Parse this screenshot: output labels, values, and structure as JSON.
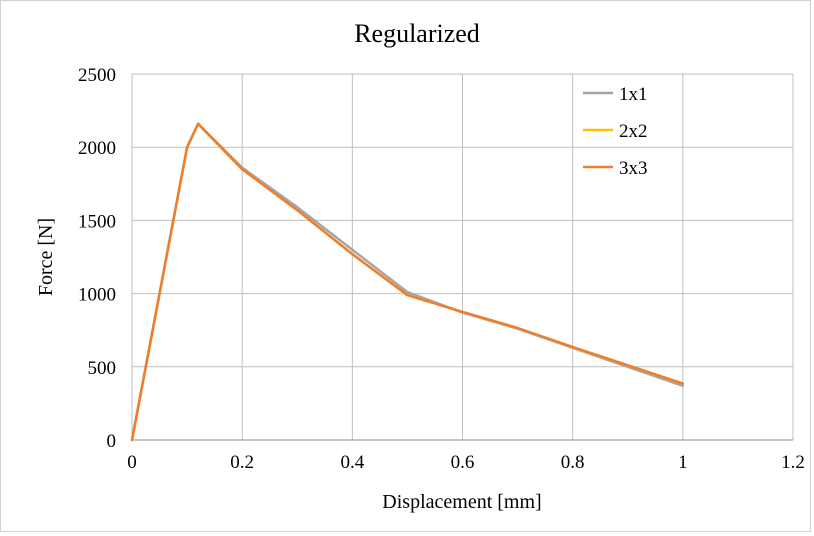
{
  "chart_data": {
    "type": "line",
    "title": "Regularized",
    "xlabel": "Displacement  [mm]",
    "ylabel": "Force [N]",
    "xlim": [
      0,
      1.2
    ],
    "ylim": [
      0,
      2500
    ],
    "xticks": [
      0,
      0.2,
      0.4,
      0.6,
      0.8,
      1,
      1.2
    ],
    "xtick_labels": [
      "0",
      "0.2",
      "0.4",
      "0.6",
      "0.8",
      "1",
      "1.2"
    ],
    "yticks": [
      0,
      500,
      1000,
      1500,
      2000,
      2500
    ],
    "ytick_labels": [
      "0",
      "500",
      "1000",
      "1500",
      "2000",
      "2500"
    ],
    "grid": true,
    "legend_position": "top-right",
    "series": [
      {
        "name": "1x1",
        "color": "#a5a5a5",
        "points": [
          [
            0,
            0
          ],
          [
            0.1,
            2000
          ],
          [
            0.12,
            2160
          ],
          [
            0.2,
            1860
          ],
          [
            0.3,
            1590
          ],
          [
            0.4,
            1300
          ],
          [
            0.5,
            1010
          ],
          [
            0.6,
            870
          ],
          [
            0.7,
            760
          ],
          [
            0.8,
            630
          ],
          [
            0.9,
            500
          ],
          [
            1.0,
            370
          ]
        ]
      },
      {
        "name": "2x2",
        "color": "#ffc000",
        "points": [
          [
            0,
            0
          ],
          [
            0.1,
            2000
          ],
          [
            0.12,
            2160
          ],
          [
            0.2,
            1850
          ],
          [
            0.3,
            1570
          ],
          [
            0.4,
            1270
          ],
          [
            0.5,
            990
          ],
          [
            0.6,
            875
          ],
          [
            0.7,
            765
          ],
          [
            0.8,
            635
          ],
          [
            0.9,
            510
          ],
          [
            1.0,
            385
          ]
        ]
      },
      {
        "name": "3x3",
        "color": "#ed7d31",
        "points": [
          [
            0,
            0
          ],
          [
            0.1,
            2000
          ],
          [
            0.12,
            2160
          ],
          [
            0.2,
            1850
          ],
          [
            0.3,
            1570
          ],
          [
            0.4,
            1270
          ],
          [
            0.5,
            990
          ],
          [
            0.6,
            875
          ],
          [
            0.7,
            765
          ],
          [
            0.8,
            635
          ],
          [
            0.9,
            510
          ],
          [
            1.0,
            385
          ]
        ]
      }
    ]
  }
}
